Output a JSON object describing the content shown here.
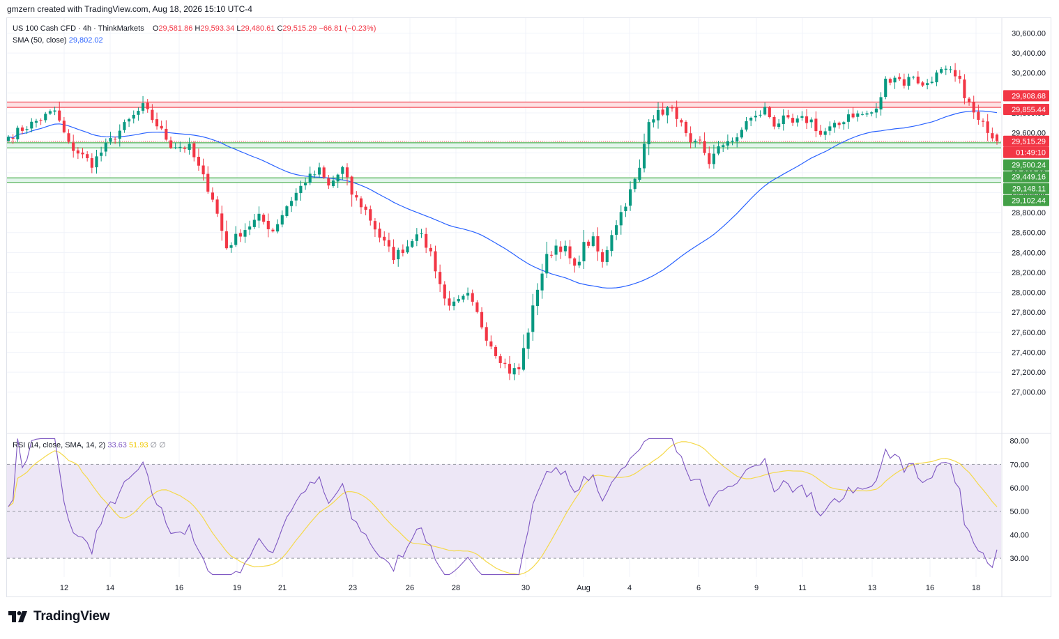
{
  "header": {
    "text": "gmzern created with TradingView.com, Aug 18, 2026 15:10 UTC-4"
  },
  "legend": {
    "symbol": "US 100 Cash CFD · 4h · ThinkMarkets",
    "o_label": "O",
    "o_value": "29,581.86",
    "h_label": "H",
    "h_value": "29,593.34",
    "l_label": "L",
    "l_value": "29,480.61",
    "c_label": "C",
    "c_value": "29,515.29",
    "change": "−66.81 (−0.23%)",
    "sma_label": "SMA (50, close)",
    "sma_value": "29,802.02",
    "rsi_label": "RSI (14, close, SMA, 14, 2)",
    "rsi_value": "33.63",
    "rsi_sma_value": "51.93",
    "rsi_extra1": "∅",
    "rsi_extra2": "∅"
  },
  "footer": {
    "brand": "TradingView",
    "logo_icon": "tradingview-logo-icon"
  },
  "colors": {
    "up": "#089981",
    "down": "#f23645",
    "sma": "#2962ff",
    "rsi": "#7e57c2",
    "rsi_sma": "#f5d94a",
    "resistance": "#f23645",
    "support": "#089981",
    "grid": "#f0f3fa",
    "rsi_band": "#ede7f6"
  },
  "chart_data": [
    {
      "type": "candlestick",
      "title": "US 100 Cash CFD · 4h · ThinkMarkets",
      "ylim": [
        26600,
        30750
      ],
      "y_ticks": [
        "30,600.00",
        "30,400.00",
        "30,200.00",
        "30,000.00",
        "29,800.00",
        "29,600.00",
        "29,400.00",
        "29,200.00",
        "29,000.00",
        "28,800.00",
        "28,600.00",
        "28,400.00",
        "28,200.00",
        "28,000.00",
        "27,800.00",
        "27,600.00",
        "27,400.00",
        "27,200.00",
        "27,000.00"
      ],
      "x_ticks": [
        "12",
        "14",
        "16",
        "19",
        "21",
        "23",
        "26",
        "28",
        "30",
        "Aug",
        "4",
        "6",
        "9",
        "11",
        "13",
        "16",
        "18"
      ],
      "anchors": [
        [
          0,
          29560
        ],
        [
          10,
          29820
        ],
        [
          13,
          29480
        ],
        [
          18,
          29290
        ],
        [
          22,
          29520
        ],
        [
          26,
          29720
        ],
        [
          29,
          29860
        ],
        [
          32,
          29680
        ],
        [
          35,
          29480
        ],
        [
          39,
          29450
        ],
        [
          44,
          28950
        ],
        [
          47,
          28450
        ],
        [
          50,
          28600
        ],
        [
          54,
          28750
        ],
        [
          57,
          28620
        ],
        [
          60,
          28870
        ],
        [
          64,
          29120
        ],
        [
          67,
          29220
        ],
        [
          69,
          29060
        ],
        [
          72,
          29240
        ],
        [
          74,
          28990
        ],
        [
          77,
          28820
        ],
        [
          80,
          28560
        ],
        [
          83,
          28360
        ],
        [
          86,
          28470
        ],
        [
          88,
          28620
        ],
        [
          91,
          28400
        ],
        [
          94,
          27930
        ],
        [
          96,
          27870
        ],
        [
          99,
          27960
        ],
        [
          101,
          27780
        ],
        [
          103,
          27560
        ],
        [
          105,
          27400
        ],
        [
          108,
          27210
        ],
        [
          110,
          27230
        ],
        [
          112,
          27620
        ],
        [
          114,
          28050
        ],
        [
          116,
          28350
        ],
        [
          118,
          28470
        ],
        [
          120,
          28430
        ],
        [
          122,
          28230
        ],
        [
          124,
          28470
        ],
        [
          126,
          28520
        ],
        [
          128,
          28290
        ],
        [
          130,
          28600
        ],
        [
          133,
          28900
        ],
        [
          136,
          29230
        ],
        [
          138,
          29750
        ],
        [
          140,
          29790
        ],
        [
          142,
          29840
        ],
        [
          144,
          29780
        ],
        [
          145,
          29670
        ],
        [
          147,
          29460
        ],
        [
          149,
          29500
        ],
        [
          151,
          29310
        ],
        [
          153,
          29430
        ],
        [
          155,
          29540
        ],
        [
          157,
          29520
        ],
        [
          159,
          29730
        ],
        [
          161,
          29750
        ],
        [
          163,
          29840
        ],
        [
          165,
          29690
        ],
        [
          167,
          29730
        ],
        [
          169,
          29690
        ],
        [
          171,
          29730
        ],
        [
          173,
          29720
        ],
        [
          175,
          29580
        ],
        [
          177,
          29640
        ],
        [
          179,
          29680
        ],
        [
          181,
          29790
        ],
        [
          183,
          29780
        ],
        [
          185,
          29790
        ],
        [
          187,
          29820
        ],
        [
          189,
          30120
        ],
        [
          191,
          30170
        ],
        [
          193,
          30100
        ],
        [
          195,
          30180
        ],
        [
          197,
          30060
        ],
        [
          199,
          30150
        ],
        [
          201,
          30210
        ],
        [
          203,
          30200
        ],
        [
          205,
          30100
        ],
        [
          207,
          29880
        ],
        [
          209,
          29710
        ],
        [
          211,
          29640
        ],
        [
          213,
          29515
        ]
      ],
      "ohlc": {
        "open": 29581.86,
        "high": 29593.34,
        "low": 29480.61,
        "close": 29515.29,
        "change": -66.81,
        "change_pct": -0.23
      },
      "sma": {
        "name": "SMA (50, close)",
        "period": 50,
        "last": 29802.02
      },
      "levels": [
        {
          "kind": "resistance",
          "value": 29908.68,
          "label": "29,908.68"
        },
        {
          "kind": "resistance",
          "value": 29855.44,
          "label": "29,855.44"
        },
        {
          "kind": "support",
          "value": 29500.24,
          "label": "29,500.24"
        },
        {
          "kind": "support",
          "value": 29449.16,
          "label": "29,449.16"
        },
        {
          "kind": "support",
          "value": 29148.11,
          "label": "29,148.11"
        },
        {
          "kind": "support",
          "value": 29102.44,
          "label": "29,102.44"
        }
      ],
      "last_price": {
        "value": 29515.29,
        "label": "29,515.29",
        "countdown": "01:49:10"
      }
    },
    {
      "type": "line",
      "title": "RSI (14, close, SMA, 14, 2)",
      "ylim": [
        22,
        82
      ],
      "y_ticks": [
        "80.00",
        "70.00",
        "60.00",
        "50.00",
        "40.00",
        "30.00"
      ],
      "band": [
        30,
        70
      ],
      "series": [
        {
          "name": "RSI",
          "last": 33.63
        },
        {
          "name": "RSI SMA",
          "last": 51.93
        }
      ]
    }
  ]
}
